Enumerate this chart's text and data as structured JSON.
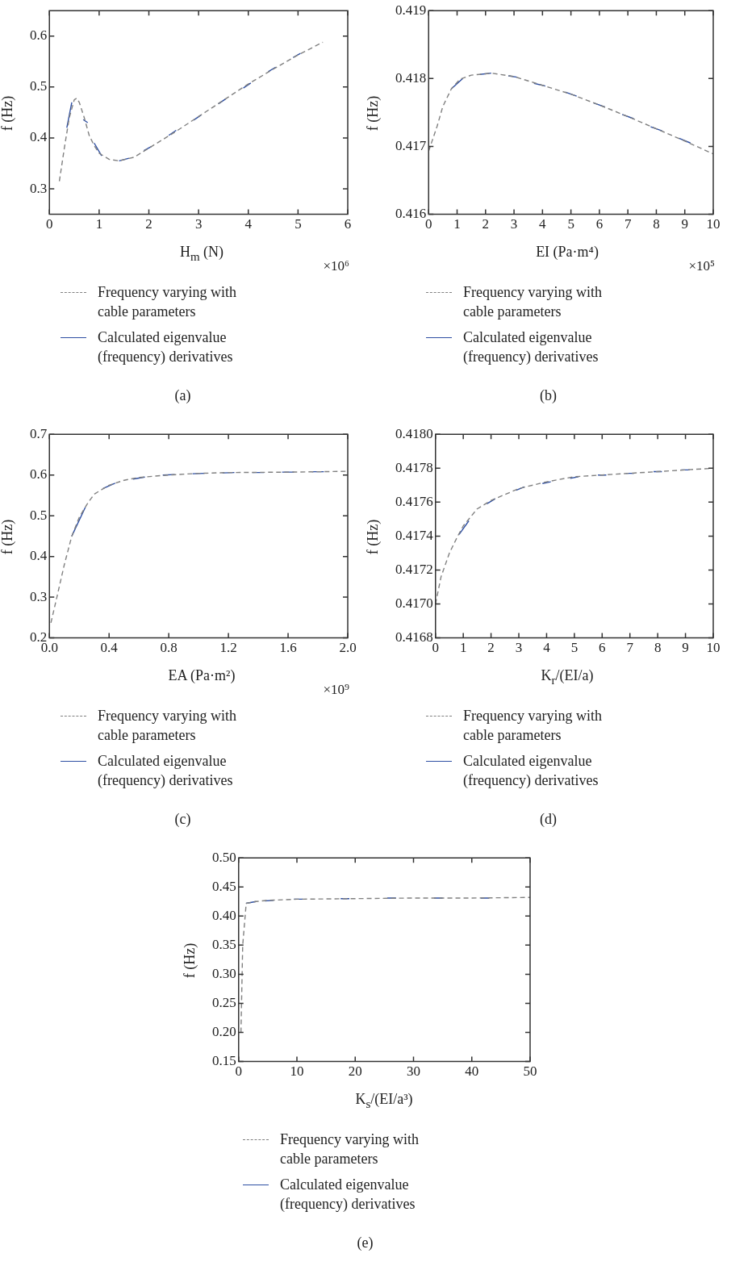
{
  "chart_data": [
    {
      "type": "line",
      "title": "(a)",
      "xlabel": "H$_{m}$ (N)",
      "ylabel": "f (Hz)",
      "annotations": [
        "×10⁶"
      ],
      "xlim": [
        0,
        6
      ],
      "xticks": [
        0,
        1,
        2,
        3,
        4,
        5,
        6
      ],
      "ylim": [
        0.25,
        0.65
      ],
      "yticks": [
        0.3,
        0.4,
        0.5,
        0.6
      ],
      "legend": "bottom",
      "marker": "none",
      "series": [
        {
          "name": "Frequency varying with cable parameters",
          "color": "#808080",
          "line_style": "dashed",
          "x": [
            0.2,
            0.3,
            0.4,
            0.5,
            0.55,
            0.6,
            0.7,
            0.8,
            0.9,
            1.0,
            1.2,
            1.4,
            1.7,
            2.0,
            2.5,
            3.0,
            3.5,
            4.0,
            4.5,
            5.0,
            5.5
          ],
          "values": [
            0.315,
            0.38,
            0.44,
            0.475,
            0.478,
            0.47,
            0.44,
            0.405,
            0.385,
            0.37,
            0.358,
            0.355,
            0.362,
            0.38,
            0.41,
            0.442,
            0.474,
            0.506,
            0.535,
            0.563,
            0.588
          ]
        },
        {
          "name": "Calculated eigenvalue (frequency) derivatives",
          "color": "#2e4fa3",
          "line_style": "solid",
          "x": [
            0.35,
            0.45,
            null,
            0.68,
            0.77,
            null,
            0.9,
            1.05,
            null,
            1.4,
            1.6,
            null,
            1.9,
            2.05,
            null,
            2.4,
            2.55,
            null,
            2.9,
            3.05,
            null,
            3.4,
            3.55,
            null,
            3.9,
            4.05,
            null,
            4.4,
            4.55,
            null,
            4.9,
            5.05
          ],
          "values": [
            0.42,
            0.47,
            null,
            0.436,
            0.43,
            null,
            0.39,
            0.365,
            null,
            0.355,
            0.36,
            null,
            0.375,
            0.383,
            null,
            0.405,
            0.415,
            null,
            0.435,
            0.445,
            null,
            0.467,
            0.477,
            null,
            0.498,
            0.508,
            null,
            0.53,
            0.539,
            null,
            0.558,
            0.566
          ]
        }
      ]
    },
    {
      "type": "line",
      "title": "(b)",
      "xlabel": "EI (Pa·m⁴)",
      "ylabel": "f (Hz)",
      "annotations": [
        "×10⁵"
      ],
      "xlim": [
        0,
        10
      ],
      "xticks": [
        0,
        1,
        2,
        3,
        4,
        5,
        6,
        7,
        8,
        9,
        10
      ],
      "ylim": [
        0.416,
        0.419
      ],
      "yticks": [
        0.416,
        0.417,
        0.418,
        0.419
      ],
      "legend": "bottom",
      "marker": "none",
      "series": [
        {
          "name": "Frequency varying with cable parameters",
          "color": "#808080",
          "line_style": "dashed",
          "x": [
            0,
            0.3,
            0.5,
            0.8,
            1.1,
            1.5,
            2,
            2.2,
            3,
            4,
            5,
            6,
            7,
            8,
            9,
            10
          ],
          "values": [
            0.41693,
            0.4173,
            0.41759,
            0.41785,
            0.41799,
            0.41805,
            0.41807,
            0.41808,
            0.41803,
            0.4179,
            0.41777,
            0.41761,
            0.41744,
            0.41726,
            0.41708,
            0.41689
          ]
        },
        {
          "name": "Calculated eigenvalue (frequency) derivatives",
          "color": "#2e4fa3",
          "line_style": "solid",
          "x": [
            0.8,
            1.2,
            null,
            1.8,
            2.2,
            null,
            2.8,
            3.1,
            null,
            3.7,
            4.1,
            null,
            4.8,
            5.2,
            null,
            5.8,
            6.2,
            null,
            6.8,
            7.2,
            null,
            7.8,
            8.2,
            null,
            8.8,
            9.2
          ],
          "values": [
            0.41785,
            0.418,
            null,
            0.41806,
            0.41808,
            null,
            0.41804,
            0.41802,
            null,
            0.41793,
            0.41789,
            null,
            0.4178,
            0.41774,
            null,
            0.41764,
            0.41758,
            null,
            0.41747,
            0.41741,
            null,
            0.41729,
            0.41723,
            null,
            0.41712,
            0.41705
          ]
        }
      ]
    },
    {
      "type": "line",
      "title": "(c)",
      "xlabel": "EA (Pa·m²)",
      "ylabel": "f (Hz)",
      "annotations": [
        "×10⁹"
      ],
      "xlim": [
        0,
        2
      ],
      "xticks": [
        {
          "value": 0,
          "label": "0.0"
        },
        0.4,
        0.8,
        1.2,
        1.6,
        {
          "value": 2,
          "label": "2.0"
        }
      ],
      "ylim": [
        0.2,
        0.7
      ],
      "yticks": [
        0.2,
        0.3,
        0.4,
        0.5,
        0.6,
        0.7
      ],
      "legend": "bottom",
      "marker": "none",
      "series": [
        {
          "name": "Frequency varying with cable parameters",
          "color": "#808080",
          "line_style": "dashed",
          "x": [
            0.01,
            0.05,
            0.1,
            0.15,
            0.2,
            0.25,
            0.3,
            0.4,
            0.5,
            0.6,
            0.8,
            1.0,
            1.2,
            1.6,
            2.0
          ],
          "values": [
            0.237,
            0.3,
            0.38,
            0.45,
            0.496,
            0.527,
            0.553,
            0.575,
            0.587,
            0.594,
            0.6,
            0.604,
            0.606,
            0.607,
            0.609
          ]
        },
        {
          "name": "Calculated eigenvalue (frequency) derivatives",
          "color": "#2e4fa3",
          "line_style": "solid",
          "x": [
            0.15,
            0.24,
            null,
            0.36,
            0.44,
            null,
            0.56,
            0.64,
            null,
            0.76,
            0.84,
            null,
            0.96,
            1.04,
            null,
            1.16,
            1.24,
            null,
            1.36,
            1.44,
            null,
            1.56,
            1.64,
            null,
            1.76,
            1.84
          ],
          "values": [
            0.45,
            0.52,
            null,
            0.567,
            0.58,
            null,
            0.59,
            0.595,
            null,
            0.6,
            0.601,
            null,
            0.603,
            0.604,
            null,
            0.605,
            0.606,
            null,
            0.606,
            0.606,
            null,
            0.607,
            0.607,
            null,
            0.608,
            0.608
          ]
        }
      ]
    },
    {
      "type": "line",
      "title": "(d)",
      "xlabel": "K$_{r}$/(EI/a)",
      "ylabel": "f (Hz)",
      "xlim": [
        0,
        10
      ],
      "xticks": [
        0,
        1,
        2,
        3,
        4,
        5,
        6,
        7,
        8,
        9,
        10
      ],
      "ylim": [
        0.4168,
        0.418
      ],
      "yticks": [
        0.4168,
        {
          "value": 0.417,
          "label": "0.4170"
        },
        0.4172,
        0.4174,
        0.4176,
        0.4178,
        {
          "value": 0.418,
          "label": "0.4180"
        }
      ],
      "legend": "bottom",
      "marker": "none",
      "series": [
        {
          "name": "Frequency varying with cable parameters",
          "color": "#808080",
          "line_style": "dashed",
          "x": [
            0,
            0.2,
            0.5,
            0.8,
            1,
            1.5,
            2,
            3,
            4,
            5,
            6,
            7,
            8,
            9,
            10
          ],
          "values": [
            0.417,
            0.41716,
            0.4173,
            0.4174,
            0.41746,
            0.41756,
            0.41761,
            0.41768,
            0.41772,
            0.41775,
            0.41776,
            0.41777,
            0.41778,
            0.41779,
            0.4178
          ]
        },
        {
          "name": "Calculated eigenvalue (frequency) derivatives",
          "color": "#2e4fa3",
          "line_style": "solid",
          "x": [
            0.85,
            1.2,
            null,
            1.85,
            2.15,
            null,
            2.9,
            3.2,
            null,
            3.85,
            4.15,
            null,
            4.85,
            5.15,
            null,
            5.85,
            6.15,
            null,
            6.85,
            7.15,
            null,
            7.85,
            8.15,
            null,
            8.85,
            9.15
          ],
          "values": [
            0.41741,
            0.41749,
            null,
            0.41759,
            0.41762,
            null,
            0.41767,
            0.41769,
            null,
            0.41771,
            0.41772,
            null,
            0.41774,
            0.41775,
            null,
            0.41776,
            0.41776,
            null,
            0.41777,
            0.41777,
            null,
            0.41778,
            0.41778,
            null,
            0.41779,
            0.41779
          ]
        }
      ]
    },
    {
      "type": "line",
      "title": "(e)",
      "xlabel": "K$_{s}$/(EI/a³)",
      "ylabel": "f (Hz)",
      "xlim": [
        0,
        50
      ],
      "xticks": [
        0,
        10,
        20,
        30,
        40,
        50
      ],
      "ylim": [
        0.15,
        0.5
      ],
      "yticks": [
        0.15,
        {
          "value": 0.2,
          "label": "0.20"
        },
        0.25,
        {
          "value": 0.3,
          "label": "0.30"
        },
        0.35,
        {
          "value": 0.4,
          "label": "0.40"
        },
        0.45,
        {
          "value": 0.5,
          "label": "0.50"
        }
      ],
      "legend": "bottom",
      "marker": "none",
      "series": [
        {
          "name": "Frequency varying with cable parameters",
          "color": "#808080",
          "line_style": "dashed",
          "x": [
            0.4,
            0.7,
            1.3,
            3,
            5,
            10,
            20,
            30,
            40,
            50
          ],
          "values": [
            0.2,
            0.35,
            0.422,
            0.425,
            0.427,
            0.429,
            0.43,
            0.431,
            0.431,
            0.432
          ]
        },
        {
          "name": "Calculated eigenvalue (frequency) derivatives",
          "color": "#2e4fa3",
          "line_style": "solid",
          "x": [
            1.3,
            3,
            null,
            4.5,
            6,
            null,
            9.5,
            11,
            null,
            17.5,
            19,
            null,
            25.5,
            27,
            null,
            33.5,
            35,
            null,
            41.5,
            43
          ],
          "values": [
            0.422,
            0.425,
            null,
            0.426,
            0.427,
            null,
            0.429,
            0.429,
            null,
            0.43,
            0.43,
            null,
            0.431,
            0.431,
            null,
            0.431,
            0.431,
            null,
            0.431,
            0.431
          ]
        }
      ]
    }
  ]
}
